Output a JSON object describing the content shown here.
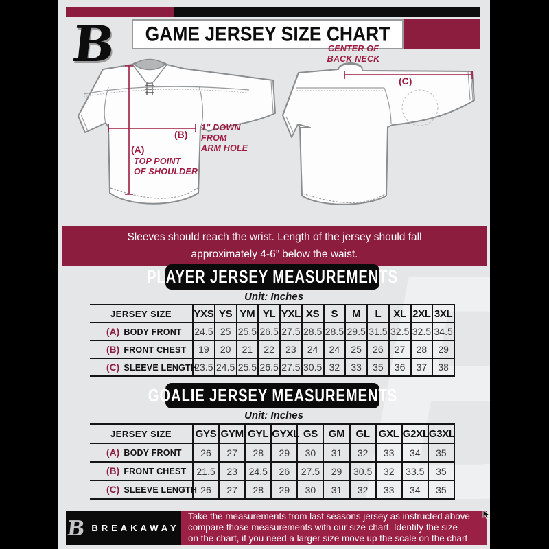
{
  "colors": {
    "maroon": "#8C1D3F",
    "annotation_red": "#9E1C42",
    "footer_maroon": "#9B2045",
    "background": "#E5E6E8",
    "black": "#0D0D0D"
  },
  "header": {
    "title": "GAME JERSEY SIZE CHART",
    "logo_letter": "B"
  },
  "diagram": {
    "front": {
      "label_a": "(A)",
      "a_caption_line1": "TOP POINT",
      "a_caption_line2": "OF SHOULDER",
      "label_b": "(B)",
      "b_caption_line1": "1” DOWN",
      "b_caption_line2": "FROM",
      "b_caption_line3": "ARM HOLE"
    },
    "back": {
      "label_c": "(C)",
      "caption_line1": "CENTER OF",
      "caption_line2": "BACK NECK"
    }
  },
  "notice": {
    "line1": "Sleeves should reach the wrist. Length of the jersey should fall",
    "line2": "approximately 4-6” below the waist."
  },
  "player_table": {
    "title": "PLAYER JERSEY MEASUREMENTS",
    "unit": "Unit: Inches",
    "size_header": "JERSEY SIZE",
    "columns": [
      "YXS",
      "YS",
      "YM",
      "YL",
      "YXL",
      "XS",
      "S",
      "M",
      "L",
      "XL",
      "2XL",
      "3XL"
    ],
    "rows": [
      {
        "key": "(A)",
        "label": "BODY FRONT",
        "values": [
          "24.5",
          "25",
          "25.5",
          "26.5",
          "27.5",
          "28.5",
          "28.5",
          "29.5",
          "31.5",
          "32.5",
          "32.5",
          "34.5"
        ]
      },
      {
        "key": "(B)",
        "label": "FRONT CHEST",
        "values": [
          "19",
          "20",
          "21",
          "22",
          "23",
          "24",
          "24",
          "25",
          "26",
          "27",
          "28",
          "29"
        ]
      },
      {
        "key": "(C)",
        "label": "SLEEVE LENGTH",
        "values": [
          "23.5",
          "24.5",
          "25.5",
          "26.5",
          "27.5",
          "30.5",
          "32",
          "33",
          "35",
          "36",
          "37",
          "38"
        ]
      }
    ]
  },
  "goalie_table": {
    "title": "GOALIE JERSEY MEASUREMENTS",
    "unit": "Unit: Inches",
    "size_header": "JERSEY SIZE",
    "columns": [
      "GYS",
      "GYM",
      "GYL",
      "GYXL",
      "GS",
      "GM",
      "GL",
      "GXL",
      "G2XL",
      "G3XL"
    ],
    "rows": [
      {
        "key": "(A)",
        "label": "BODY FRONT",
        "values": [
          "26",
          "27",
          "28",
          "29",
          "30",
          "31",
          "32",
          "33",
          "34",
          "35"
        ]
      },
      {
        "key": "(B)",
        "label": "FRONT CHEST",
        "values": [
          "21.5",
          "23",
          "24.5",
          "26",
          "27.5",
          "29",
          "30.5",
          "32",
          "33.5",
          "35"
        ]
      },
      {
        "key": "(C)",
        "label": "SLEEVE LENGTH",
        "values": [
          "26",
          "27",
          "28",
          "29",
          "30",
          "31",
          "32",
          "33",
          "34",
          "35"
        ]
      }
    ]
  },
  "footer": {
    "brand": "BREAKAWAY",
    "logo_letter": "B",
    "line1": "Take the measurements from last seasons jersey as instructed above",
    "line2": "compare those measurements  with our size chart. Identify the size",
    "line3": "on the chart, if you need a larger size move up the scale on the chart"
  },
  "watermark_letter": "B"
}
